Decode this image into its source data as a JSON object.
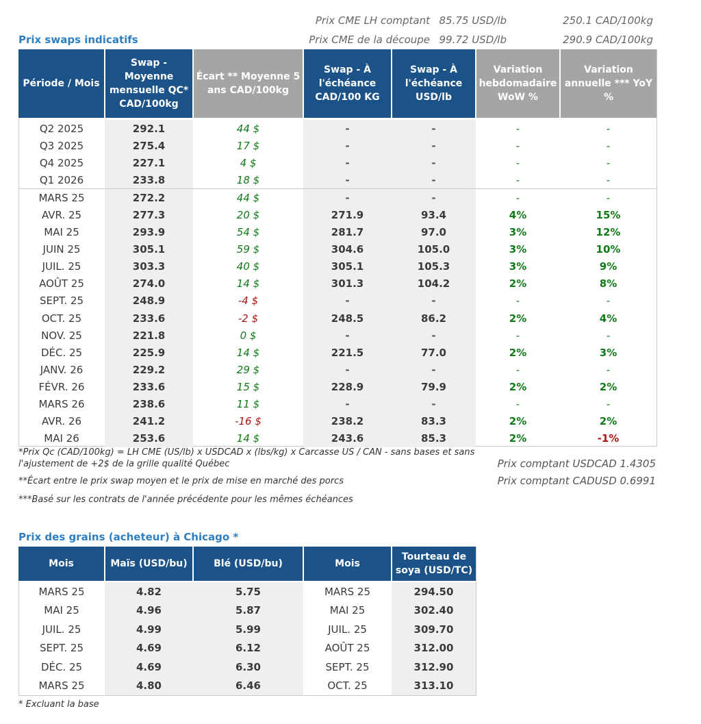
{
  "header": {
    "lh_label": "Prix CME LH comptant",
    "lh_usd": "85.75 USD/lb",
    "lh_cad": "250.1 CAD/100kg",
    "cut_label": "Prix CME de la découpe",
    "cut_usd": "99.72 USD/lb",
    "cut_cad": "290.9 CAD/100kg"
  },
  "swaps": {
    "title": "Prix swaps indicatifs",
    "columns": [
      "Période / Mois",
      "Swap - Moyenne mensuelle QC* CAD/100kg",
      "Écart ** Moyenne 5 ans CAD/100kg",
      "Swap - À l'échéance CAD/100 KG",
      "Swap - À l'échéance USD/lb",
      "Variation hebdomadaire WoW %",
      "Variation annuelle *** YoY %"
    ],
    "rows": [
      {
        "period": "Q2 2025",
        "swap": "292.1",
        "ecart": "44 $",
        "cad": "-",
        "usd": "-",
        "wow": "-",
        "yoy": "-"
      },
      {
        "period": "Q3 2025",
        "swap": "275.4",
        "ecart": "17 $",
        "cad": "-",
        "usd": "-",
        "wow": "-",
        "yoy": "-"
      },
      {
        "period": "Q4 2025",
        "swap": "227.1",
        "ecart": "4 $",
        "cad": "-",
        "usd": "-",
        "wow": "-",
        "yoy": "-"
      },
      {
        "period": "Q1 2026",
        "swap": "233.8",
        "ecart": "18 $",
        "cad": "-",
        "usd": "-",
        "wow": "-",
        "yoy": "-"
      },
      {
        "period": "MARS 25",
        "swap": "272.2",
        "ecart": "44 $",
        "cad": "-",
        "usd": "-",
        "wow": "-",
        "yoy": "-"
      },
      {
        "period": "AVR. 25",
        "swap": "277.3",
        "ecart": "20 $",
        "cad": "271.9",
        "usd": "93.4",
        "wow": "4%",
        "yoy": "15%"
      },
      {
        "period": "MAI 25",
        "swap": "293.9",
        "ecart": "54 $",
        "cad": "281.7",
        "usd": "97.0",
        "wow": "3%",
        "yoy": "12%"
      },
      {
        "period": "JUIN 25",
        "swap": "305.1",
        "ecart": "59 $",
        "cad": "304.6",
        "usd": "105.0",
        "wow": "3%",
        "yoy": "10%"
      },
      {
        "period": "JUIL. 25",
        "swap": "303.3",
        "ecart": "40 $",
        "cad": "305.1",
        "usd": "105.3",
        "wow": "3%",
        "yoy": "9%"
      },
      {
        "period": "AOÛT 25",
        "swap": "274.0",
        "ecart": "14 $",
        "cad": "301.3",
        "usd": "104.2",
        "wow": "2%",
        "yoy": "8%"
      },
      {
        "period": "SEPT. 25",
        "swap": "248.9",
        "ecart": "-4 $",
        "cad": "-",
        "usd": "-",
        "wow": "-",
        "yoy": "-"
      },
      {
        "period": "OCT. 25",
        "swap": "233.6",
        "ecart": "-2 $",
        "cad": "248.5",
        "usd": "86.2",
        "wow": "2%",
        "yoy": "4%"
      },
      {
        "period": "NOV. 25",
        "swap": "221.8",
        "ecart": "0 $",
        "cad": "-",
        "usd": "-",
        "wow": "-",
        "yoy": "-"
      },
      {
        "period": "DÉC. 25",
        "swap": "225.9",
        "ecart": "14 $",
        "cad": "221.5",
        "usd": "77.0",
        "wow": "2%",
        "yoy": "3%"
      },
      {
        "period": "JANV. 26",
        "swap": "229.2",
        "ecart": "29 $",
        "cad": "-",
        "usd": "-",
        "wow": "-",
        "yoy": "-"
      },
      {
        "period": "FÉVR. 26",
        "swap": "233.6",
        "ecart": "15 $",
        "cad": "228.9",
        "usd": "79.9",
        "wow": "2%",
        "yoy": "2%"
      },
      {
        "period": "MARS 26",
        "swap": "238.6",
        "ecart": "11 $",
        "cad": "-",
        "usd": "-",
        "wow": "-",
        "yoy": "-"
      },
      {
        "period": "AVR. 26",
        "swap": "241.2",
        "ecart": "-16 $",
        "cad": "238.2",
        "usd": "83.3",
        "wow": "2%",
        "yoy": "2%"
      },
      {
        "period": "MAI 26",
        "swap": "253.6",
        "ecart": "14 $",
        "cad": "243.6",
        "usd": "85.3",
        "wow": "2%",
        "yoy": "-1%"
      }
    ],
    "notes": {
      "n1": "*Prix Qc (CAD/100kg) = LH CME (US/lb) x USDCAD x (lbs/kg) x Carcasse US / CAN - sans bases et sans l'ajustement de +2$ de la grille qualité Québec",
      "n2": "**Écart entre le prix swap moyen et le prix de mise en marché des porcs",
      "n3": "***Basé sur les contrats de l'année précédente pour les mêmes échéances",
      "usdcad": "Prix comptant USDCAD 1.4305",
      "cadusd": "Prix comptant CADUSD 0.6991"
    }
  },
  "grains": {
    "title": "Prix des grains (acheteur) à Chicago *",
    "columns": [
      "Mois",
      "Maïs (USD/bu)",
      "Blé (USD/bu)",
      "Mois",
      "Tourteau de soya (USD/TC)"
    ],
    "rows": [
      {
        "m1": "MARS 25",
        "mais": "4.82",
        "ble": "5.75",
        "m2": "MARS 25",
        "soya": "294.50"
      },
      {
        "m1": "MAI 25",
        "mais": "4.96",
        "ble": "5.87",
        "m2": "MAI 25",
        "soya": "302.40"
      },
      {
        "m1": "JUIL. 25",
        "mais": "4.99",
        "ble": "5.99",
        "m2": "JUIL. 25",
        "soya": "309.70"
      },
      {
        "m1": "SEPT. 25",
        "mais": "4.69",
        "ble": "6.12",
        "m2": "AOÛT 25",
        "soya": "312.00"
      },
      {
        "m1": "DÉC. 25",
        "mais": "4.69",
        "ble": "6.30",
        "m2": "SEPT. 25",
        "soya": "312.90"
      },
      {
        "m1": "MARS 25",
        "mais": "4.80",
        "ble": "6.46",
        "m2": "OCT. 25",
        "soya": "313.10"
      }
    ],
    "note": "* Excluant la base"
  }
}
